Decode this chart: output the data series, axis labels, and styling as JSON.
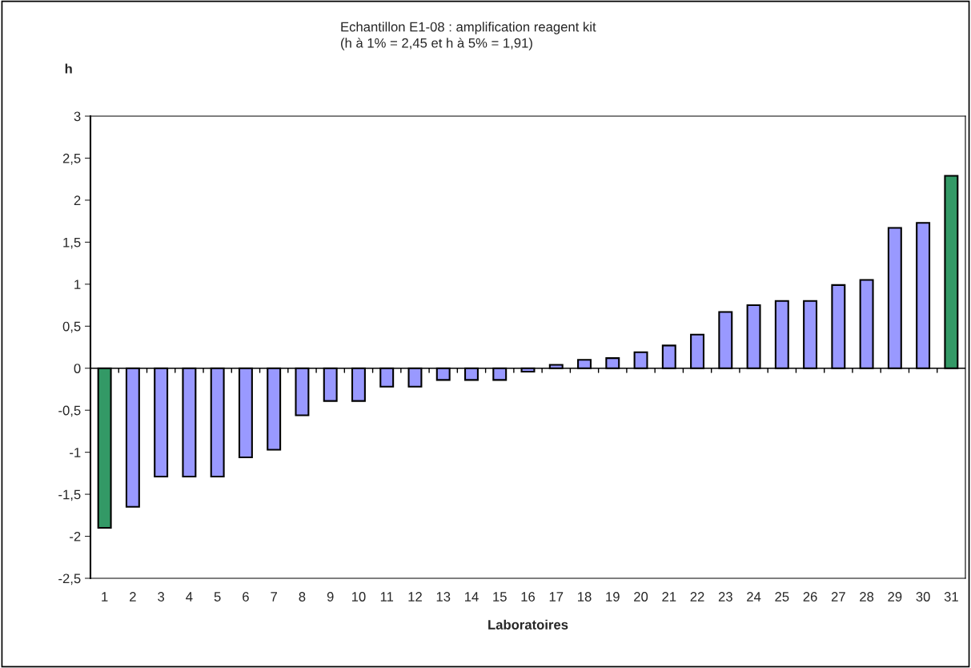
{
  "chart_data": {
    "type": "bar",
    "title": "Echantillon E1-08 : amplification reagent kit",
    "subtitle": "(h à 1% = 2,45 et h à 5% = 1,91)",
    "ylabel": "h",
    "xlabel": "Laboratoires",
    "categories": [
      "1",
      "2",
      "3",
      "4",
      "5",
      "6",
      "7",
      "8",
      "9",
      "10",
      "11",
      "12",
      "13",
      "14",
      "15",
      "16",
      "17",
      "18",
      "19",
      "20",
      "21",
      "22",
      "23",
      "24",
      "25",
      "26",
      "27",
      "28",
      "29",
      "30",
      "31"
    ],
    "values": [
      -1.9,
      -1.65,
      -1.29,
      -1.29,
      -1.29,
      -1.06,
      -0.97,
      -0.56,
      -0.39,
      -0.39,
      -0.22,
      -0.22,
      -0.14,
      -0.14,
      -0.14,
      -0.04,
      0.04,
      0.1,
      0.12,
      0.19,
      0.27,
      0.4,
      0.67,
      0.75,
      0.8,
      0.8,
      0.99,
      1.05,
      1.67,
      1.73,
      2.29
    ],
    "colors": [
      "#339966",
      "#9999ff",
      "#9999ff",
      "#9999ff",
      "#9999ff",
      "#9999ff",
      "#9999ff",
      "#9999ff",
      "#9999ff",
      "#9999ff",
      "#9999ff",
      "#9999ff",
      "#9999ff",
      "#9999ff",
      "#9999ff",
      "#9999ff",
      "#9999ff",
      "#9999ff",
      "#9999ff",
      "#9999ff",
      "#9999ff",
      "#9999ff",
      "#9999ff",
      "#9999ff",
      "#9999ff",
      "#9999ff",
      "#9999ff",
      "#9999ff",
      "#9999ff",
      "#9999ff",
      "#339966"
    ],
    "ylim": [
      -2.5,
      3
    ],
    "yticks": [
      {
        "value": -2.5,
        "label": "-2,5"
      },
      -2,
      {
        "value": -1.5,
        "label": "-1,5"
      },
      -1,
      {
        "value": -0.5,
        "label": "-0,5"
      },
      0,
      {
        "value": 0.5,
        "label": "0,5"
      },
      1,
      {
        "value": 1.5,
        "label": "1,5"
      },
      2,
      {
        "value": 2.5,
        "label": "2,5"
      },
      3
    ],
    "legend": false
  }
}
